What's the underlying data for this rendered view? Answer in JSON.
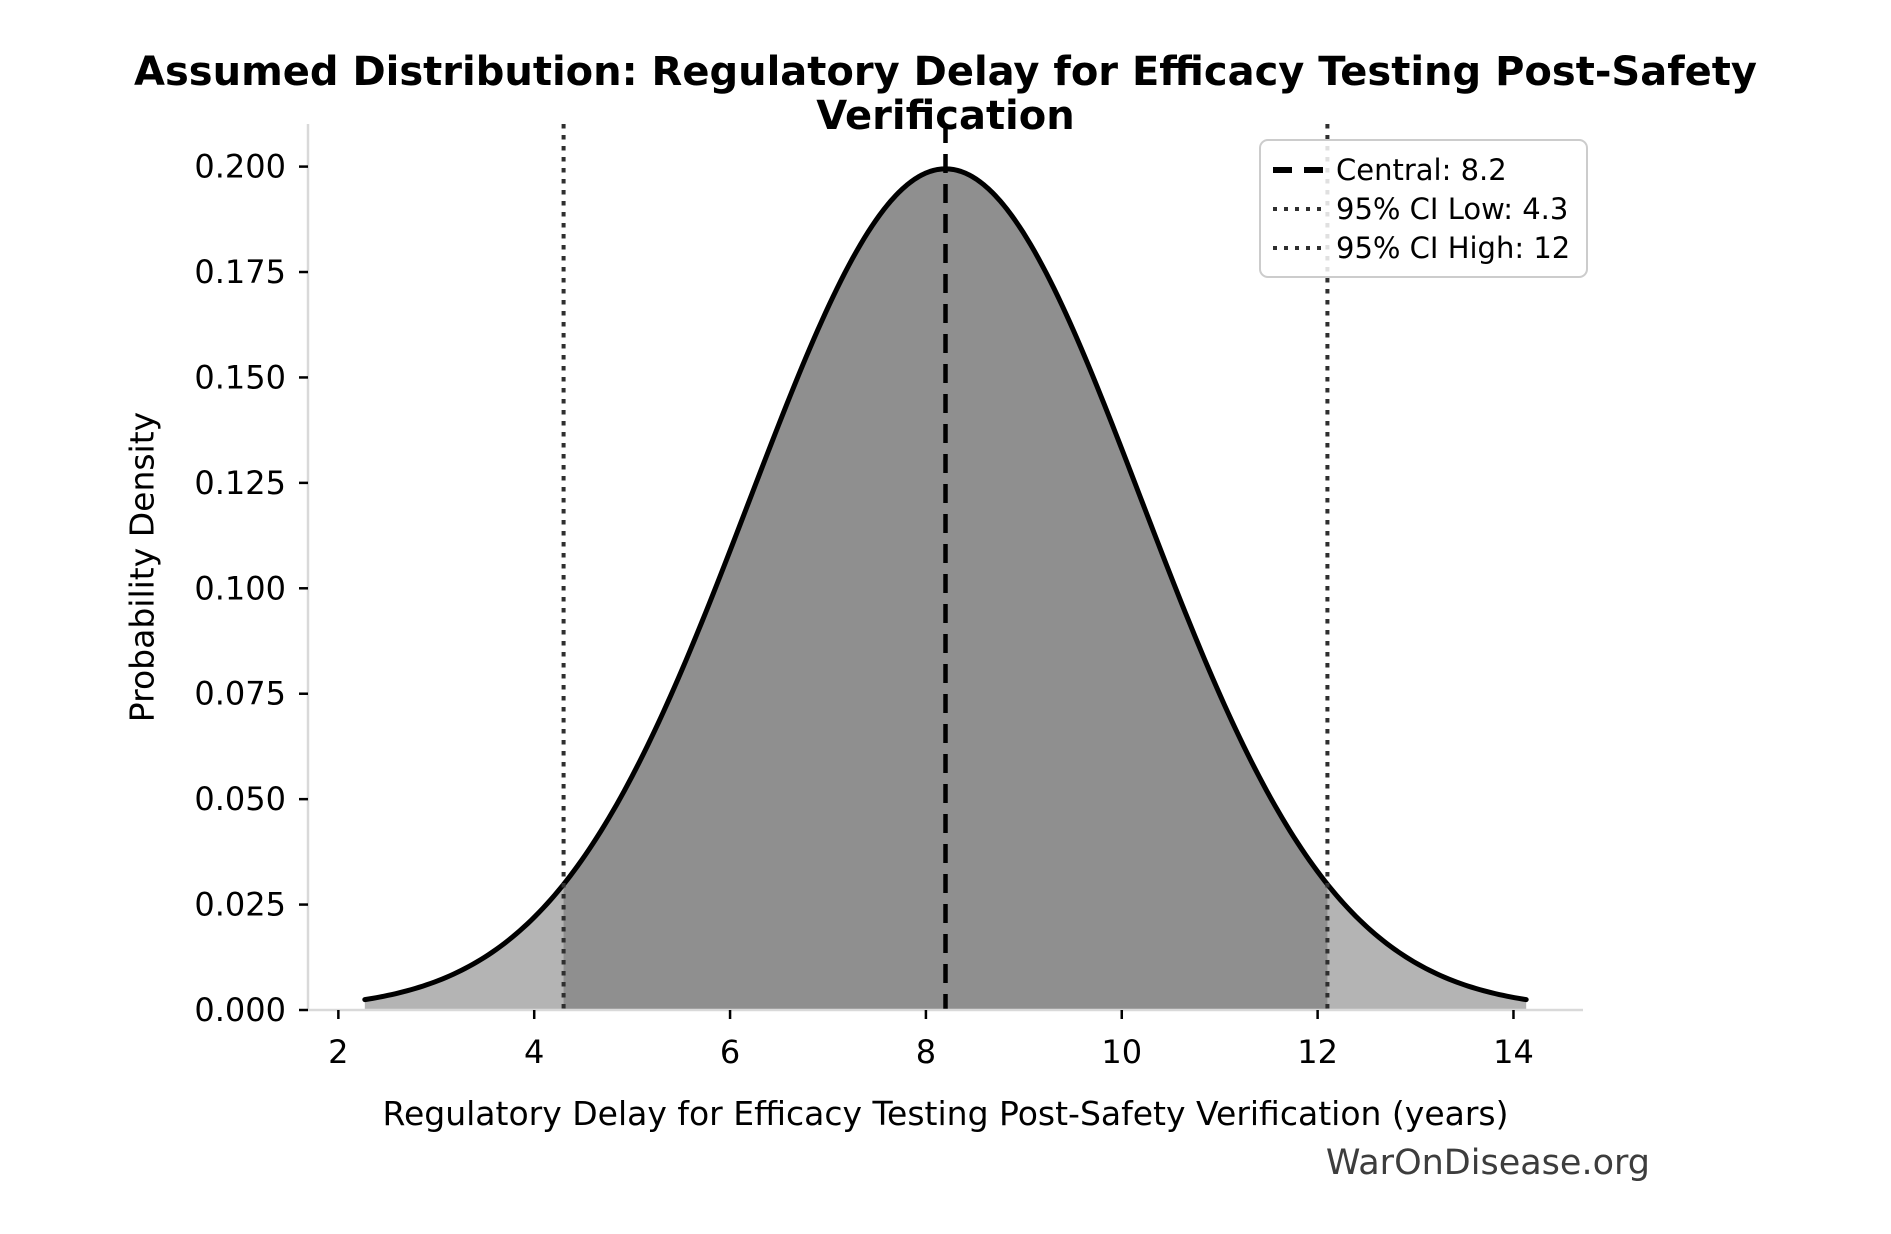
{
  "title": "Assumed Distribution: Regulatory Delay for Efficacy Testing Post-Safety Verification",
  "watermark": "WarOnDisease.org",
  "chart_data": {
    "type": "area",
    "title": "Assumed Distribution: Regulatory Delay for Efficacy Testing Post-Safety Verification",
    "xlabel": "Regulatory Delay for Efficacy Testing Post-Safety Verification (years)",
    "ylabel": "Probability Density",
    "distribution": {
      "shape": "normal",
      "mean": 8.2,
      "std": 2.0,
      "peak_density": 0.199,
      "curve_x_start": 2.27,
      "curve_x_end": 14.13
    },
    "markers": {
      "central": 8.2,
      "ci_low": 4.3,
      "ci_high": 12.1
    },
    "legend": [
      {
        "label": "Central: 8.2",
        "style": "dashed"
      },
      {
        "label": "95% CI Low: 4.3",
        "style": "dotted"
      },
      {
        "label": "95% CI High: 12",
        "style": "dotted"
      }
    ],
    "legend_position": "upper right",
    "grid": false,
    "x_ticks": [
      "2",
      "4",
      "6",
      "8",
      "10",
      "12",
      "14"
    ],
    "x_tick_values": [
      2,
      4,
      6,
      8,
      10,
      12,
      14
    ],
    "y_ticks": [
      "0.000",
      "0.025",
      "0.050",
      "0.075",
      "0.100",
      "0.125",
      "0.150",
      "0.175",
      "0.200"
    ],
    "y_tick_values": [
      0.0,
      0.025,
      0.05,
      0.075,
      0.1,
      0.125,
      0.15,
      0.175,
      0.2
    ],
    "xlim": [
      1.69,
      14.71
    ],
    "ylim": [
      0,
      0.2101
    ],
    "colors": {
      "fill_ci": "#8f8f8f",
      "fill_tail": "#b4b4b4",
      "curve": "#000000",
      "central_line": "#000000",
      "ci_line": "#2f2f2f",
      "spine": "#d9d9d9",
      "tick": "#000000",
      "tick_label": "#000000",
      "watermark": "#3d3d3d",
      "legend_border": "#cccccc"
    }
  }
}
